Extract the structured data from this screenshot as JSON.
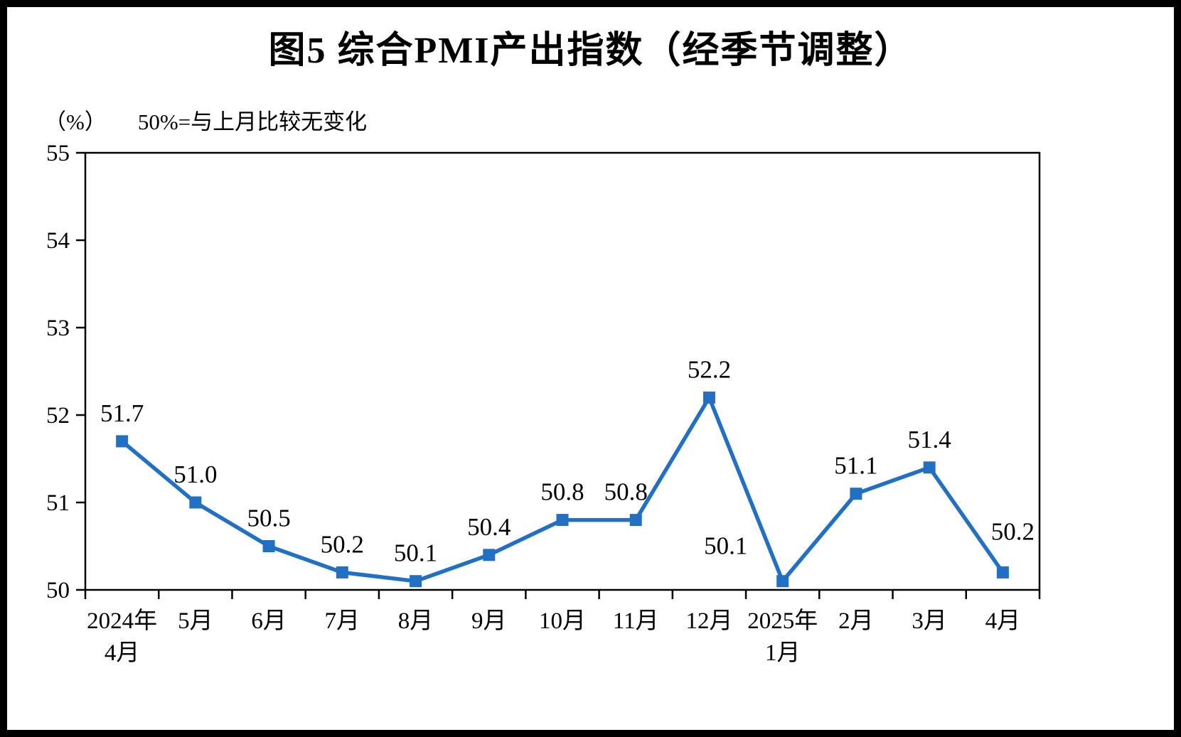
{
  "title": "图5  综合PMI产出指数（经季节调整）",
  "unit_label": "（%）",
  "baseline_note": "50%=与上月比较无变化",
  "chart_data": {
    "type": "line",
    "title": "图5  综合PMI产出指数（经季节调整）",
    "ylabel": "（%）",
    "annotation": "50%=与上月比较无变化",
    "categories": [
      "2024年\n4月",
      "5月",
      "6月",
      "7月",
      "8月",
      "9月",
      "10月",
      "11月",
      "12月",
      "2025年\n1月",
      "2月",
      "3月",
      "4月"
    ],
    "values": [
      51.7,
      51.0,
      50.5,
      50.2,
      50.1,
      50.4,
      50.8,
      50.8,
      52.2,
      50.1,
      51.1,
      51.4,
      50.2
    ],
    "ylim": [
      50,
      55
    ],
    "ytick_step": 1,
    "grid": false,
    "legend": false,
    "series_color": "#2170c4",
    "axis_color": "#000000",
    "marker": "square",
    "label_offsets": {
      "7": {
        "dx": -14,
        "dy": 0
      },
      "9": {
        "dx": -80,
        "dy": -10
      },
      "12": {
        "dx": 14,
        "dy": -18
      }
    }
  }
}
